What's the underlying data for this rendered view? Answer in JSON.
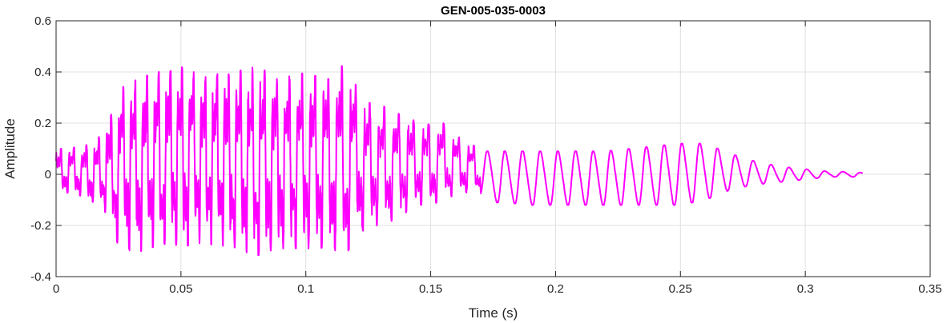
{
  "chart_data": {
    "type": "line",
    "title": "GEN-005-035-0003",
    "xlabel": "Time (s)",
    "ylabel": "Amplitude",
    "xlim": [
      0,
      0.35
    ],
    "ylim": [
      -0.4,
      0.6
    ],
    "xticks": [
      0,
      0.05,
      0.1,
      0.15,
      0.2,
      0.25,
      0.3,
      0.35
    ],
    "xtick_labels": [
      "0",
      "0.05",
      "0.1",
      "0.15",
      "0.2",
      "0.25",
      "0.3",
      "0.35"
    ],
    "yticks": [
      -0.4,
      -0.2,
      0,
      0.2,
      0.4,
      0.6
    ],
    "ytick_labels": [
      "-0.4",
      "-0.2",
      "0",
      "0.2",
      "0.4",
      "0.6"
    ],
    "grid": true,
    "colors": {
      "series": "#ff00ff",
      "grid": "#e0e0e0",
      "axis": "#262626"
    },
    "series": [
      {
        "duration": 0.323,
        "envelope_x": [
          0,
          0.005,
          0.01,
          0.015,
          0.02,
          0.025,
          0.03,
          0.035,
          0.04,
          0.045,
          0.05,
          0.055,
          0.06,
          0.065,
          0.07,
          0.075,
          0.08,
          0.085,
          0.09,
          0.095,
          0.1,
          0.105,
          0.11,
          0.115,
          0.12,
          0.125,
          0.13,
          0.135,
          0.14,
          0.145,
          0.15,
          0.155,
          0.16,
          0.165,
          0.17,
          0.175,
          0.18,
          0.19,
          0.2,
          0.21,
          0.22,
          0.23,
          0.24,
          0.25,
          0.26,
          0.27,
          0.28,
          0.29,
          0.3,
          0.31,
          0.32,
          0.323
        ],
        "envelope_max": [
          0.1,
          0.1,
          0.11,
          0.12,
          0.18,
          0.33,
          0.36,
          0.38,
          0.4,
          0.4,
          0.42,
          0.4,
          0.38,
          0.4,
          0.39,
          0.41,
          0.42,
          0.4,
          0.39,
          0.38,
          0.4,
          0.38,
          0.37,
          0.43,
          0.35,
          0.28,
          0.27,
          0.25,
          0.22,
          0.22,
          0.19,
          0.2,
          0.15,
          0.13,
          0.09,
          0.09,
          0.09,
          0.09,
          0.09,
          0.09,
          0.09,
          0.1,
          0.11,
          0.12,
          0.12,
          0.08,
          0.05,
          0.03,
          0.02,
          0.01,
          0.01,
          0.005
        ],
        "envelope_min": [
          -0.1,
          -0.07,
          -0.09,
          -0.12,
          -0.15,
          -0.28,
          -0.3,
          -0.3,
          -0.28,
          -0.27,
          -0.29,
          -0.27,
          -0.27,
          -0.28,
          -0.28,
          -0.3,
          -0.32,
          -0.3,
          -0.29,
          -0.29,
          -0.29,
          -0.29,
          -0.28,
          -0.33,
          -0.25,
          -0.2,
          -0.2,
          -0.18,
          -0.15,
          -0.12,
          -0.12,
          -0.1,
          -0.08,
          -0.07,
          -0.08,
          -0.11,
          -0.11,
          -0.12,
          -0.12,
          -0.12,
          -0.12,
          -0.12,
          -0.12,
          -0.12,
          -0.1,
          -0.06,
          -0.04,
          -0.03,
          -0.02,
          -0.01,
          -0.01,
          -0.005
        ]
      }
    ]
  }
}
